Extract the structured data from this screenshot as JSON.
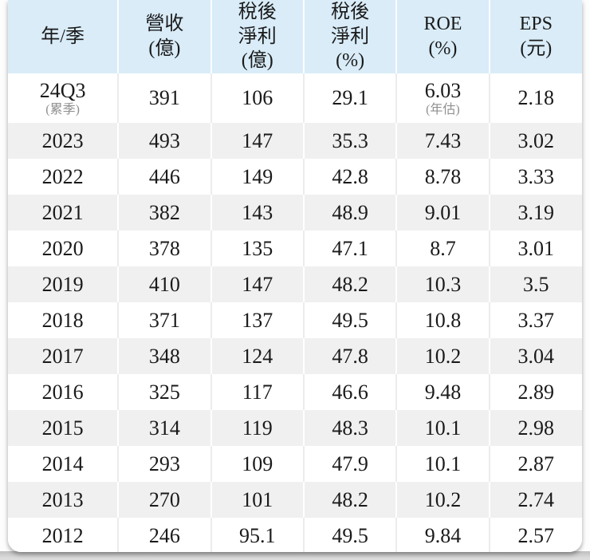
{
  "chart_data": {
    "type": "table",
    "title": "",
    "columns": [
      "年/季",
      "營收(億)",
      "稅後淨利(億)",
      "稅後淨利(%)",
      "ROE(%)",
      "EPS(元)"
    ],
    "rows": [
      [
        "24Q3 (累季)",
        "391",
        "106",
        "29.1",
        "6.03 (年估)",
        "2.18"
      ],
      [
        "2023",
        "493",
        "147",
        "35.3",
        "7.43",
        "3.02"
      ],
      [
        "2022",
        "446",
        "149",
        "42.8",
        "8.78",
        "3.33"
      ],
      [
        "2021",
        "382",
        "143",
        "48.9",
        "9.01",
        "3.19"
      ],
      [
        "2020",
        "378",
        "135",
        "47.1",
        "8.7",
        "3.01"
      ],
      [
        "2019",
        "410",
        "147",
        "48.2",
        "10.3",
        "3.5"
      ],
      [
        "2018",
        "371",
        "137",
        "49.5",
        "10.8",
        "3.37"
      ],
      [
        "2017",
        "348",
        "124",
        "47.8",
        "10.2",
        "3.04"
      ],
      [
        "2016",
        "325",
        "117",
        "46.6",
        "9.48",
        "2.89"
      ],
      [
        "2015",
        "314",
        "119",
        "48.3",
        "10.1",
        "2.98"
      ],
      [
        "2014",
        "293",
        "109",
        "47.9",
        "10.1",
        "2.87"
      ],
      [
        "2013",
        "270",
        "101",
        "48.2",
        "10.2",
        "2.74"
      ],
      [
        "2012",
        "246",
        "95.1",
        "49.5",
        "9.84",
        "2.57"
      ]
    ]
  },
  "table": {
    "columns": [
      {
        "key": "period",
        "lines": [
          "年/季"
        ]
      },
      {
        "key": "revenue",
        "lines": [
          "營收",
          "(億)"
        ]
      },
      {
        "key": "net_profit",
        "lines": [
          "稅後",
          "淨利",
          "(億)"
        ]
      },
      {
        "key": "net_margin",
        "lines": [
          "稅後",
          "淨利",
          "(%)"
        ]
      },
      {
        "key": "roe",
        "lines": [
          "ROE",
          "(%)"
        ]
      },
      {
        "key": "eps",
        "lines": [
          "EPS",
          "(元)"
        ]
      }
    ],
    "rows": [
      {
        "cells": [
          "24Q3",
          "391",
          "106",
          "29.1",
          "6.03",
          "2.18"
        ],
        "notes": {
          "0": "(累季)",
          "4": "(年估)"
        }
      },
      {
        "cells": [
          "2023",
          "493",
          "147",
          "35.3",
          "7.43",
          "3.02"
        ]
      },
      {
        "cells": [
          "2022",
          "446",
          "149",
          "42.8",
          "8.78",
          "3.33"
        ]
      },
      {
        "cells": [
          "2021",
          "382",
          "143",
          "48.9",
          "9.01",
          "3.19"
        ]
      },
      {
        "cells": [
          "2020",
          "378",
          "135",
          "47.1",
          "8.7",
          "3.01"
        ]
      },
      {
        "cells": [
          "2019",
          "410",
          "147",
          "48.2",
          "10.3",
          "3.5"
        ]
      },
      {
        "cells": [
          "2018",
          "371",
          "137",
          "49.5",
          "10.8",
          "3.37"
        ]
      },
      {
        "cells": [
          "2017",
          "348",
          "124",
          "47.8",
          "10.2",
          "3.04"
        ]
      },
      {
        "cells": [
          "2016",
          "325",
          "117",
          "46.6",
          "9.48",
          "2.89"
        ]
      },
      {
        "cells": [
          "2015",
          "314",
          "119",
          "48.3",
          "10.1",
          "2.98"
        ]
      },
      {
        "cells": [
          "2014",
          "293",
          "109",
          "47.9",
          "10.1",
          "2.87"
        ]
      },
      {
        "cells": [
          "2013",
          "270",
          "101",
          "48.2",
          "10.2",
          "2.74"
        ]
      },
      {
        "cells": [
          "2012",
          "246",
          "95.1",
          "49.5",
          "9.84",
          "2.57"
        ]
      }
    ]
  },
  "colors": {
    "header_bg": "#d9ecf8",
    "alt_row_bg": "#f0f0f0",
    "text": "#1a1a1a",
    "note": "#8f8f8f",
    "strip_dark": "#bfbfbf",
    "strip_light": "#dcdcdc"
  }
}
